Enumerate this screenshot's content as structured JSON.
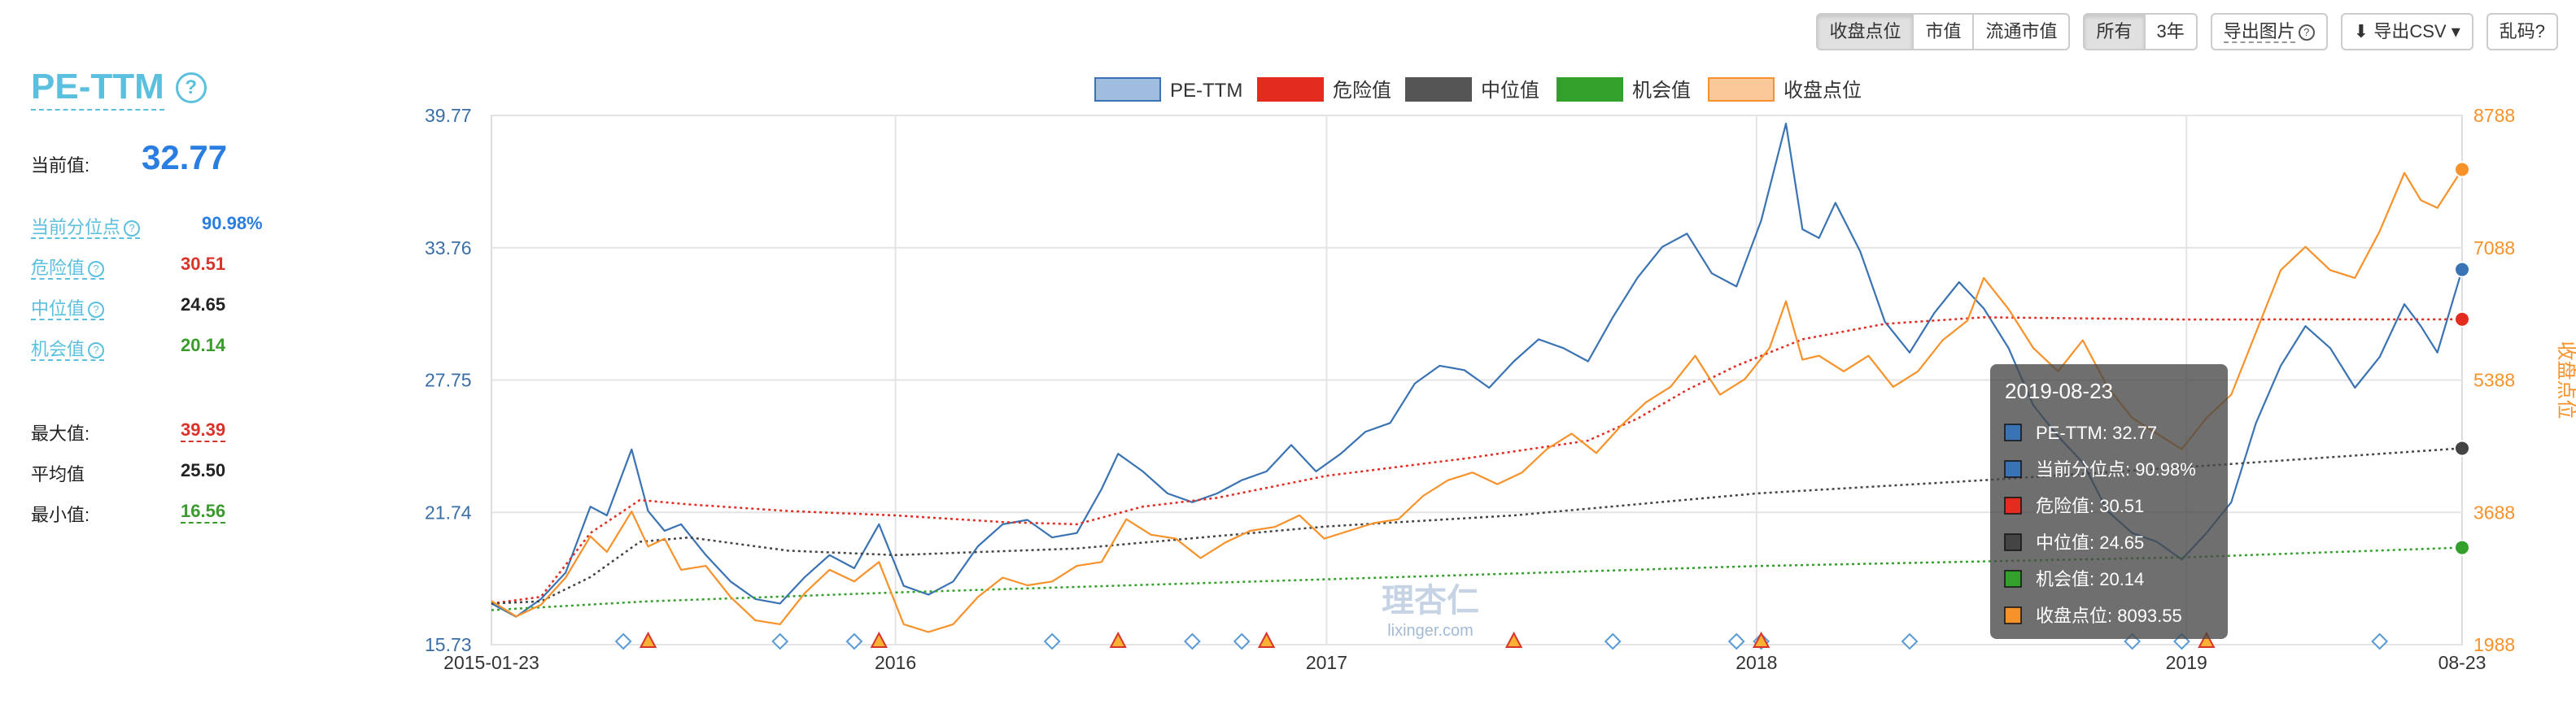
{
  "toolbar": {
    "metric_buttons": [
      "收盘点位",
      "市值",
      "流通市值"
    ],
    "range_buttons": [
      "所有",
      "3年"
    ],
    "export_image": "导出图片",
    "export_csv": "导出CSV",
    "garbled": "乱码?"
  },
  "sidebar": {
    "title": "PE-TTM",
    "current_label": "当前值:",
    "current_value": "32.77",
    "percentile_label": "当前分位点",
    "percentile_value": "90.98%",
    "danger_label": "危险值",
    "danger_value": "30.51",
    "median_label": "中位值",
    "median_value": "24.65",
    "opportunity_label": "机会值",
    "opportunity_value": "20.14",
    "max_label": "最大值:",
    "max_value": "39.39",
    "avg_label": "平均值",
    "avg_value": "25.50",
    "min_label": "最小值:",
    "min_value": "16.56"
  },
  "watermark": {
    "logo_text": "理杏仁",
    "url": "lixinger.com"
  },
  "tooltip": {
    "date": "2019-08-23",
    "rows": [
      {
        "label": "PE-TTM: 32.77",
        "color": "#3a73b4"
      },
      {
        "label": "当前分位点: 90.98%",
        "color": "#3a73b4"
      },
      {
        "label": "危险值: 30.51",
        "color": "#e32b20"
      },
      {
        "label": "中位值: 24.65",
        "color": "#444444"
      },
      {
        "label": "机会值: 20.14",
        "color": "#33a02c"
      },
      {
        "label": "收盘点位: 8093.55",
        "color": "#f7922b"
      }
    ]
  },
  "chart_data": {
    "type": "line",
    "x_tick_labels": [
      "2015-01-23",
      "2016",
      "2017",
      "2018",
      "2019",
      "08-23"
    ],
    "x_range": [
      "2015-01-23",
      "2019-08-23"
    ],
    "left_axis": {
      "title": "",
      "ticks": [
        15.73,
        21.74,
        27.75,
        33.76,
        39.77
      ],
      "range": [
        15.73,
        39.77
      ]
    },
    "right_axis": {
      "title": "收盘点位",
      "ticks": [
        1988,
        3688,
        5388,
        7088,
        8788
      ],
      "range": [
        1988,
        8788
      ]
    },
    "grid": true,
    "legend": [
      "PE-TTM",
      "危险值",
      "中位值",
      "机会值",
      "收盘点位"
    ],
    "legend_position": "top-center",
    "series": [
      {
        "name": "PE-TTM",
        "axis": "left",
        "color": "#3a73b4",
        "style": "solid",
        "points": [
          [
            "2015-01-23",
            17.6
          ],
          [
            "2015-02-13",
            17.0
          ],
          [
            "2015-03-06",
            17.8
          ],
          [
            "2015-03-27",
            19.0
          ],
          [
            "2015-04-17",
            22.0
          ],
          [
            "2015-05-01",
            21.6
          ],
          [
            "2015-05-15",
            23.6
          ],
          [
            "2015-05-22",
            24.6
          ],
          [
            "2015-06-05",
            21.8
          ],
          [
            "2015-06-19",
            20.9
          ],
          [
            "2015-07-03",
            21.2
          ],
          [
            "2015-07-24",
            19.8
          ],
          [
            "2015-08-14",
            18.6
          ],
          [
            "2015-09-04",
            17.8
          ],
          [
            "2015-09-25",
            17.6
          ],
          [
            "2015-10-16",
            18.8
          ],
          [
            "2015-11-06",
            19.8
          ],
          [
            "2015-11-27",
            19.2
          ],
          [
            "2015-12-18",
            21.2
          ],
          [
            "2016-01-08",
            18.4
          ],
          [
            "2016-01-29",
            18.0
          ],
          [
            "2016-02-19",
            18.6
          ],
          [
            "2016-03-11",
            20.2
          ],
          [
            "2016-04-01",
            21.2
          ],
          [
            "2016-04-22",
            21.4
          ],
          [
            "2016-05-13",
            20.6
          ],
          [
            "2016-06-03",
            20.8
          ],
          [
            "2016-06-24",
            22.8
          ],
          [
            "2016-07-08",
            24.4
          ],
          [
            "2016-07-29",
            23.6
          ],
          [
            "2016-08-19",
            22.6
          ],
          [
            "2016-09-09",
            22.2
          ],
          [
            "2016-09-30",
            22.6
          ],
          [
            "2016-10-21",
            23.2
          ],
          [
            "2016-11-11",
            23.6
          ],
          [
            "2016-12-02",
            24.8
          ],
          [
            "2016-12-23",
            23.6
          ],
          [
            "2017-01-13",
            24.4
          ],
          [
            "2017-02-03",
            25.4
          ],
          [
            "2017-02-24",
            25.8
          ],
          [
            "2017-03-17",
            27.6
          ],
          [
            "2017-04-07",
            28.4
          ],
          [
            "2017-04-28",
            28.2
          ],
          [
            "2017-05-19",
            27.4
          ],
          [
            "2017-06-09",
            28.6
          ],
          [
            "2017-06-30",
            29.6
          ],
          [
            "2017-07-21",
            29.2
          ],
          [
            "2017-08-11",
            28.6
          ],
          [
            "2017-09-01",
            30.6
          ],
          [
            "2017-09-22",
            32.4
          ],
          [
            "2017-10-13",
            33.8
          ],
          [
            "2017-11-03",
            34.4
          ],
          [
            "2017-11-24",
            32.6
          ],
          [
            "2017-12-15",
            32.0
          ],
          [
            "2018-01-05",
            35.0
          ],
          [
            "2018-01-26",
            39.4
          ],
          [
            "2018-02-09",
            34.6
          ],
          [
            "2018-02-23",
            34.2
          ],
          [
            "2018-03-09",
            35.8
          ],
          [
            "2018-03-30",
            33.6
          ],
          [
            "2018-04-20",
            30.4
          ],
          [
            "2018-05-11",
            29.0
          ],
          [
            "2018-06-01",
            30.8
          ],
          [
            "2018-06-22",
            32.2
          ],
          [
            "2018-07-13",
            31.0
          ],
          [
            "2018-08-03",
            29.2
          ],
          [
            "2018-08-24",
            26.6
          ],
          [
            "2018-09-14",
            25.2
          ],
          [
            "2018-10-05",
            24.0
          ],
          [
            "2018-10-26",
            21.8
          ],
          [
            "2018-11-16",
            20.8
          ],
          [
            "2018-12-07",
            20.4
          ],
          [
            "2018-12-28",
            19.6
          ],
          [
            "2019-01-18",
            20.8
          ],
          [
            "2019-02-08",
            22.2
          ],
          [
            "2019-03-01",
            25.8
          ],
          [
            "2019-03-22",
            28.4
          ],
          [
            "2019-04-12",
            30.2
          ],
          [
            "2019-05-03",
            29.2
          ],
          [
            "2019-05-24",
            27.4
          ],
          [
            "2019-06-14",
            28.8
          ],
          [
            "2019-07-05",
            31.2
          ],
          [
            "2019-07-19",
            30.2
          ],
          [
            "2019-08-02",
            29.0
          ],
          [
            "2019-08-23",
            32.77
          ]
        ]
      },
      {
        "name": "危险值",
        "axis": "left",
        "color": "#e32b20",
        "style": "dotted",
        "points": [
          [
            "2015-01-23",
            17.6
          ],
          [
            "2015-03-06",
            17.9
          ],
          [
            "2015-04-17",
            20.8
          ],
          [
            "2015-05-29",
            22.3
          ],
          [
            "2015-07-10",
            22.1
          ],
          [
            "2015-10-02",
            21.8
          ],
          [
            "2016-01-01",
            21.6
          ],
          [
            "2016-04-01",
            21.3
          ],
          [
            "2016-06-03",
            21.2
          ],
          [
            "2016-07-29",
            22.0
          ],
          [
            "2016-09-30",
            22.4
          ],
          [
            "2017-01-01",
            23.4
          ],
          [
            "2017-05-01",
            24.2
          ],
          [
            "2017-08-11",
            25.0
          ],
          [
            "2017-09-22",
            26.0
          ],
          [
            "2017-11-03",
            27.3
          ],
          [
            "2017-12-15",
            28.4
          ],
          [
            "2018-02-09",
            29.6
          ],
          [
            "2018-04-20",
            30.3
          ],
          [
            "2018-07-13",
            30.6
          ],
          [
            "2018-12-28",
            30.5
          ],
          [
            "2019-08-23",
            30.51
          ]
        ]
      },
      {
        "name": "中位值",
        "axis": "left",
        "color": "#444444",
        "style": "dotted",
        "points": [
          [
            "2015-01-23",
            17.6
          ],
          [
            "2015-03-06",
            17.7
          ],
          [
            "2015-04-17",
            18.8
          ],
          [
            "2015-05-29",
            20.4
          ],
          [
            "2015-07-10",
            20.6
          ],
          [
            "2015-10-02",
            20.0
          ],
          [
            "2016-01-01",
            19.8
          ],
          [
            "2016-06-03",
            20.1
          ],
          [
            "2017-01-01",
            21.1
          ],
          [
            "2017-06-09",
            21.6
          ],
          [
            "2018-01-01",
            22.6
          ],
          [
            "2018-07-13",
            23.2
          ],
          [
            "2019-01-01",
            23.8
          ],
          [
            "2019-08-23",
            24.65
          ]
        ]
      },
      {
        "name": "机会值",
        "axis": "left",
        "color": "#33a02c",
        "style": "dotted",
        "points": [
          [
            "2015-01-23",
            17.3
          ],
          [
            "2015-06-05",
            17.7
          ],
          [
            "2016-01-01",
            18.1
          ],
          [
            "2017-01-01",
            18.7
          ],
          [
            "2018-01-01",
            19.3
          ],
          [
            "2019-01-01",
            19.7
          ],
          [
            "2019-08-23",
            20.14
          ]
        ]
      },
      {
        "name": "收盘点位",
        "axis": "right",
        "color": "#f7922b",
        "style": "solid",
        "points": [
          [
            "2015-01-23",
            2550
          ],
          [
            "2015-02-13",
            2350
          ],
          [
            "2015-03-06",
            2500
          ],
          [
            "2015-03-27",
            2850
          ],
          [
            "2015-04-17",
            3380
          ],
          [
            "2015-05-01",
            3180
          ],
          [
            "2015-05-22",
            3700
          ],
          [
            "2015-06-05",
            3250
          ],
          [
            "2015-06-19",
            3350
          ],
          [
            "2015-07-03",
            2950
          ],
          [
            "2015-07-24",
            3000
          ],
          [
            "2015-08-14",
            2600
          ],
          [
            "2015-09-04",
            2300
          ],
          [
            "2015-09-25",
            2250
          ],
          [
            "2015-10-16",
            2650
          ],
          [
            "2015-11-06",
            2950
          ],
          [
            "2015-11-27",
            2800
          ],
          [
            "2015-12-18",
            3050
          ],
          [
            "2016-01-08",
            2250
          ],
          [
            "2016-01-29",
            2150
          ],
          [
            "2016-02-19",
            2250
          ],
          [
            "2016-03-11",
            2600
          ],
          [
            "2016-04-01",
            2850
          ],
          [
            "2016-04-22",
            2750
          ],
          [
            "2016-05-13",
            2800
          ],
          [
            "2016-06-03",
            3000
          ],
          [
            "2016-06-24",
            3050
          ],
          [
            "2016-07-15",
            3600
          ],
          [
            "2016-08-05",
            3400
          ],
          [
            "2016-08-26",
            3350
          ],
          [
            "2016-09-16",
            3100
          ],
          [
            "2016-10-07",
            3300
          ],
          [
            "2016-10-28",
            3450
          ],
          [
            "2016-11-18",
            3500
          ],
          [
            "2016-12-09",
            3650
          ],
          [
            "2016-12-30",
            3350
          ],
          [
            "2017-01-20",
            3450
          ],
          [
            "2017-02-10",
            3550
          ],
          [
            "2017-03-03",
            3600
          ],
          [
            "2017-03-24",
            3900
          ],
          [
            "2017-04-14",
            4100
          ],
          [
            "2017-05-05",
            4200
          ],
          [
            "2017-05-26",
            4050
          ],
          [
            "2017-06-16",
            4200
          ],
          [
            "2017-07-07",
            4500
          ],
          [
            "2017-07-28",
            4700
          ],
          [
            "2017-08-18",
            4450
          ],
          [
            "2017-09-08",
            4800
          ],
          [
            "2017-09-29",
            5100
          ],
          [
            "2017-10-20",
            5300
          ],
          [
            "2017-11-10",
            5700
          ],
          [
            "2017-12-01",
            5200
          ],
          [
            "2017-12-22",
            5400
          ],
          [
            "2018-01-12",
            5800
          ],
          [
            "2018-01-26",
            6400
          ],
          [
            "2018-02-09",
            5650
          ],
          [
            "2018-02-23",
            5700
          ],
          [
            "2018-03-16",
            5500
          ],
          [
            "2018-04-06",
            5700
          ],
          [
            "2018-04-27",
            5300
          ],
          [
            "2018-05-18",
            5500
          ],
          [
            "2018-06-08",
            5900
          ],
          [
            "2018-06-29",
            6150
          ],
          [
            "2018-07-13",
            6700
          ],
          [
            "2018-08-03",
            6300
          ],
          [
            "2018-08-24",
            5800
          ],
          [
            "2018-09-14",
            5500
          ],
          [
            "2018-10-05",
            5900
          ],
          [
            "2018-10-26",
            5300
          ],
          [
            "2018-11-16",
            4900
          ],
          [
            "2018-12-07",
            4700
          ],
          [
            "2018-12-28",
            4500
          ],
          [
            "2019-01-18",
            4900
          ],
          [
            "2019-02-08",
            5200
          ],
          [
            "2019-03-01",
            6000
          ],
          [
            "2019-03-22",
            6800
          ],
          [
            "2019-04-12",
            7100
          ],
          [
            "2019-05-03",
            6800
          ],
          [
            "2019-05-24",
            6700
          ],
          [
            "2019-06-14",
            7300
          ],
          [
            "2019-07-05",
            8050
          ],
          [
            "2019-07-19",
            7700
          ],
          [
            "2019-08-02",
            7600
          ],
          [
            "2019-08-23",
            8093.55
          ]
        ]
      }
    ],
    "markers": {
      "diamond_dates": [
        "2015-05-15",
        "2015-09-25",
        "2015-11-27",
        "2016-05-13",
        "2016-09-09",
        "2016-10-21",
        "2017-09-01",
        "2017-12-15",
        "2018-01-05",
        "2018-05-11",
        "2018-11-16",
        "2018-12-28",
        "2019-06-14"
      ],
      "triangle_dates": [
        "2015-06-05",
        "2015-12-18",
        "2016-07-08",
        "2016-11-11",
        "2017-06-09",
        "2018-01-05",
        "2019-01-18"
      ]
    }
  }
}
